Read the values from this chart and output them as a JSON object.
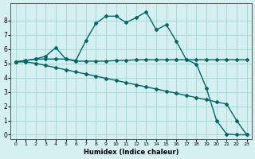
{
  "xlabel": "Humidex (Indice chaleur)",
  "ylabel": "",
  "background_color": "#d4f0f0",
  "grid_color": "#b0d8d8",
  "line_color": "#006666",
  "xlim": [
    -0.5,
    23.5
  ],
  "ylim": [
    -0.3,
    9.2
  ],
  "xticks": [
    0,
    1,
    2,
    3,
    4,
    5,
    6,
    7,
    8,
    9,
    10,
    11,
    12,
    13,
    14,
    15,
    16,
    17,
    18,
    19,
    20,
    21,
    22,
    23
  ],
  "yticks": [
    0,
    1,
    2,
    3,
    4,
    5,
    6,
    7,
    8
  ],
  "line1_x": [
    0,
    1,
    2,
    3,
    4,
    5,
    6,
    7,
    8,
    9,
    10,
    11,
    12,
    13,
    14,
    15,
    16,
    17,
    18,
    19,
    20,
    21,
    22,
    23
  ],
  "line1_y": [
    5.1,
    5.2,
    5.3,
    5.3,
    5.3,
    5.3,
    5.15,
    5.15,
    5.15,
    5.15,
    5.2,
    5.2,
    5.25,
    5.25,
    5.25,
    5.25,
    5.25,
    5.25,
    5.25,
    5.25,
    5.25,
    5.25,
    5.25,
    5.25
  ],
  "line2_x": [
    0,
    1,
    2,
    3,
    4,
    5,
    6,
    7,
    8,
    9,
    10,
    11,
    12,
    13,
    14,
    15,
    16,
    17,
    18,
    19,
    20,
    21,
    22,
    23
  ],
  "line2_y": [
    5.1,
    5.2,
    5.3,
    5.5,
    6.1,
    5.3,
    5.2,
    6.6,
    7.8,
    8.3,
    8.3,
    7.85,
    8.2,
    8.6,
    7.35,
    7.7,
    6.55,
    5.25,
    4.95,
    3.25,
    1.0,
    0.05,
    0.0,
    0.0
  ],
  "line3_x": [
    0,
    1,
    2,
    3,
    4,
    5,
    6,
    7,
    8,
    9,
    10,
    11,
    12,
    13,
    14,
    15,
    16,
    17,
    18,
    19,
    20,
    21,
    22,
    23
  ],
  "line3_y": [
    5.1,
    5.1,
    5.0,
    4.85,
    4.7,
    4.55,
    4.4,
    4.25,
    4.1,
    3.95,
    3.8,
    3.65,
    3.5,
    3.35,
    3.2,
    3.05,
    2.9,
    2.75,
    2.6,
    2.45,
    2.3,
    2.15,
    1.0,
    0.0
  ]
}
